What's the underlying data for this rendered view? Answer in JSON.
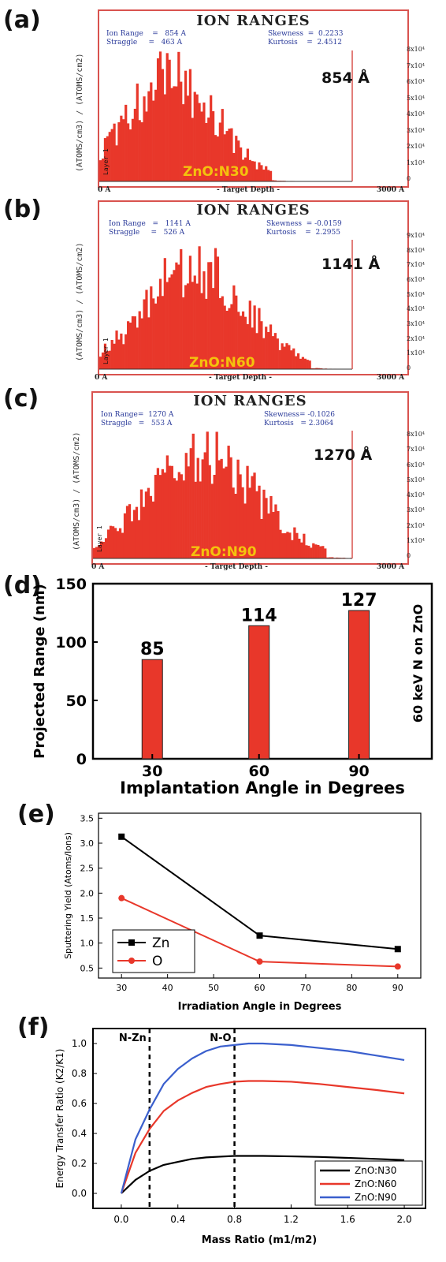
{
  "panels": {
    "a": {
      "letter": "(a)",
      "title": "ION RANGES",
      "stats_left": [
        "Ion Range    =   854 A",
        "Straggle     =   463 A"
      ],
      "stats_right": [
        "Skewness  =  0.2233",
        "Kurtosis    =  2.4512"
      ],
      "ylabel": "(ATOMS/cm3) / (ATOMS/cm2)",
      "yticks": [
        "8x10⁴",
        "7x10⁴",
        "6x10⁴",
        "5x10⁴",
        "4x10⁴",
        "3x10⁴",
        "2x10⁴",
        "1x10⁴",
        "0"
      ],
      "x_start": "0 A",
      "x_end": "3000 A",
      "xlabel": "- Target Depth -",
      "range_annotation": "854 Å",
      "sample": "ZnO:N30",
      "layer": "Layer 1"
    },
    "b": {
      "letter": "(b)",
      "title": "ION RANGES",
      "stats_left": [
        "Ion Range   =   1141 A",
        "Straggle     =   526 A"
      ],
      "stats_right": [
        "Skewness  = -0.0159",
        "Kurtosis    =  2.2955"
      ],
      "ylabel": "(ATOMS/cm3) / (ATOMS/cm2)",
      "yticks": [
        "9x10⁴",
        "8x10⁴",
        "7x10⁴",
        "6x10⁴",
        "5x10⁴",
        "4x10⁴",
        "3x10⁴",
        "2x10⁴",
        "1x10⁴",
        "0"
      ],
      "x_start": "0 A",
      "x_end": "3000 A",
      "xlabel": "- Target Depth -",
      "range_annotation": "1141 Å",
      "sample": "ZnO:N60",
      "layer": "Layer 1"
    },
    "c": {
      "letter": "(c)",
      "title": "ION RANGES",
      "stats_left": [
        "Ion Range=  1270 A",
        "Straggle   =   553 A"
      ],
      "stats_right": [
        "Skewness= -0.1026",
        "Kurtosis   = 2.3064"
      ],
      "ylabel": "(ATOMS/cm3) / (ATOMS/cm2)",
      "yticks": [
        "8x10⁴",
        "7x10⁴",
        "6x10⁴",
        "5x10⁴",
        "4x10⁴",
        "3x10⁴",
        "2x10⁴",
        "1x10⁴",
        "0"
      ],
      "x_start": "0 A",
      "x_end": "3000 A",
      "xlabel": "- Target Depth -",
      "range_annotation": "1270 Å",
      "sample": "ZnO:N90",
      "layer": "Layer 1"
    },
    "d": {
      "letter": "(d)"
    },
    "e": {
      "letter": "(e)"
    },
    "f": {
      "letter": "(f)"
    }
  },
  "chart_data": [
    {
      "type": "bar",
      "panel": "a",
      "title": "ION RANGES",
      "xlabel": "- Target Depth -",
      "ylabel": "(ATOMS/cm3) / (ATOMS/cm2)",
      "xlim": [
        0,
        3000
      ],
      "ylim": [
        0,
        85000
      ],
      "peak_depth": 854,
      "straggle": 463,
      "approx_peak_value": 82000,
      "color": "#e8372a"
    },
    {
      "type": "bar",
      "panel": "b",
      "title": "ION RANGES",
      "xlabel": "- Target Depth -",
      "ylabel": "(ATOMS/cm3) / (ATOMS/cm2)",
      "xlim": [
        0,
        3000
      ],
      "ylim": [
        0,
        95000
      ],
      "peak_depth": 1141,
      "straggle": 526,
      "approx_peak_value": 88000,
      "color": "#e8372a"
    },
    {
      "type": "bar",
      "panel": "c",
      "title": "ION RANGES",
      "xlabel": "- Target Depth -",
      "ylabel": "(ATOMS/cm3) / (ATOMS/cm2)",
      "xlim": [
        0,
        3000
      ],
      "ylim": [
        0,
        85000
      ],
      "peak_depth": 1270,
      "straggle": 553,
      "approx_peak_value": 82000,
      "color": "#e8372a"
    },
    {
      "type": "bar",
      "panel": "d",
      "categories": [
        "30",
        "60",
        "90"
      ],
      "values": [
        85,
        114,
        127
      ],
      "value_labels": [
        "85",
        "114",
        "127"
      ],
      "xlabel": "Implantation Angle in Degrees",
      "ylabel": "Projected Range (nm)",
      "annotation": "60 keV N on ZnO",
      "ylim": [
        0,
        150
      ],
      "yticks": [
        0,
        50,
        100,
        150
      ],
      "color": "#e8372a"
    },
    {
      "type": "line",
      "panel": "e",
      "x": [
        30,
        60,
        90
      ],
      "series": [
        {
          "name": "Zn",
          "values": [
            3.13,
            1.15,
            0.88
          ],
          "color": "#000000",
          "marker": "square"
        },
        {
          "name": "O",
          "values": [
            1.9,
            0.63,
            0.53
          ],
          "color": "#e8372a",
          "marker": "circle"
        }
      ],
      "xlabel": "Irradiation Angle in Degrees",
      "ylabel": "Sputtering Yield (Atoms/Ions)",
      "xlim": [
        25,
        95
      ],
      "ylim": [
        0.3,
        3.6
      ],
      "xticks": [
        30,
        40,
        50,
        60,
        70,
        80,
        90
      ],
      "yticks": [
        0.5,
        1.0,
        1.5,
        2.0,
        2.5,
        3.0,
        3.5
      ],
      "legend": "bottom-left"
    },
    {
      "type": "line",
      "panel": "f",
      "x": [
        0,
        0.1,
        0.2,
        0.3,
        0.4,
        0.5,
        0.6,
        0.7,
        0.8,
        0.9,
        1.0,
        1.2,
        1.4,
        1.6,
        1.8,
        2.0
      ],
      "series": [
        {
          "name": "ZnO:N30",
          "values": [
            0,
            0.09,
            0.15,
            0.19,
            0.21,
            0.23,
            0.24,
            0.245,
            0.25,
            0.25,
            0.25,
            0.247,
            0.243,
            0.237,
            0.23,
            0.222
          ],
          "color": "#000000"
        },
        {
          "name": "ZnO:N60",
          "values": [
            0,
            0.27,
            0.43,
            0.55,
            0.62,
            0.67,
            0.71,
            0.73,
            0.745,
            0.75,
            0.75,
            0.745,
            0.73,
            0.71,
            0.69,
            0.667
          ],
          "color": "#e8372a"
        },
        {
          "name": "ZnO:N90",
          "values": [
            0,
            0.36,
            0.56,
            0.73,
            0.83,
            0.9,
            0.95,
            0.98,
            0.99,
            1.0,
            1.0,
            0.99,
            0.97,
            0.95,
            0.92,
            0.89
          ],
          "color": "#3a5fcd"
        }
      ],
      "xlabel": "Mass Ratio (m1/m2)",
      "ylabel": "Energy Transfer Ratio (K2/K1)",
      "xlim": [
        -0.2,
        2.15
      ],
      "ylim": [
        -0.1,
        1.1
      ],
      "xticks": [
        0.0,
        0.4,
        0.8,
        1.2,
        1.6,
        2.0
      ],
      "yticks": [
        0.0,
        0.2,
        0.4,
        0.6,
        0.8,
        1.0
      ],
      "vlines": [
        {
          "x": 0.2,
          "label": "N-Zn"
        },
        {
          "x": 0.8,
          "label": "N-O"
        }
      ],
      "legend": "bottom-right"
    }
  ]
}
